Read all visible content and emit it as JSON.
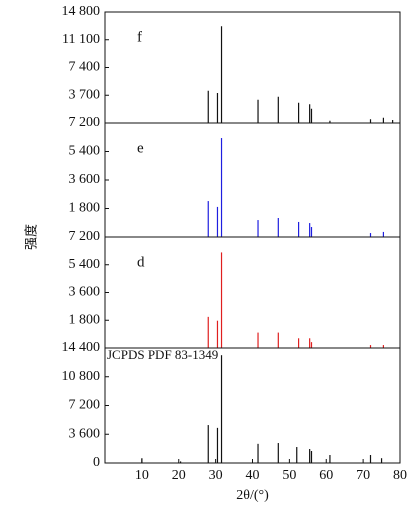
{
  "chart_data": [
    {
      "type": "stem",
      "title": "f",
      "color": "#111111",
      "x": [
        28.0,
        30.5,
        31.6,
        41.5,
        47.0,
        52.5,
        55.5,
        56.0,
        61.0,
        72.0,
        75.5,
        78.0
      ],
      "values": [
        4300,
        4000,
        12900,
        3100,
        3500,
        2700,
        2500,
        1900,
        300,
        500,
        700,
        400
      ],
      "xlim": [
        0,
        80
      ],
      "ylim": [
        0,
        14800
      ],
      "yticks": [
        {
          "value": 14800,
          "label": "14 800"
        },
        {
          "value": 11100,
          "label": "11 100"
        },
        {
          "value": 7400,
          "label": "7 400"
        },
        {
          "value": 3700,
          "label": "3 700"
        }
      ]
    },
    {
      "type": "stem",
      "title": "e",
      "color": "#1f1fe0",
      "x": [
        28.0,
        30.5,
        31.6,
        41.5,
        47.0,
        52.5,
        55.5,
        56.0,
        72.0,
        75.5
      ],
      "values": [
        2270,
        1900,
        6250,
        1070,
        1200,
        950,
        880,
        630,
        250,
        320
      ],
      "xlim": [
        0,
        80
      ],
      "ylim": [
        0,
        7200
      ],
      "yticks": [
        {
          "value": 7200,
          "label": "7 200"
        },
        {
          "value": 5400,
          "label": "5 400"
        },
        {
          "value": 3600,
          "label": "3 600"
        },
        {
          "value": 1800,
          "label": "1 800"
        }
      ]
    },
    {
      "type": "stem",
      "title": "d",
      "color": "#e01f1f",
      "x": [
        28.0,
        30.5,
        31.6,
        41.5,
        47.0,
        52.5,
        55.5,
        56.0,
        72.0,
        75.5
      ],
      "values": [
        2020,
        1770,
        6200,
        1000,
        1000,
        630,
        630,
        380,
        190,
        190
      ],
      "xlim": [
        0,
        80
      ],
      "ylim": [
        0,
        7200
      ],
      "yticks": [
        {
          "value": 7200,
          "label": "7 200"
        },
        {
          "value": 5400,
          "label": "5 400"
        },
        {
          "value": 3600,
          "label": "3 600"
        },
        {
          "value": 1800,
          "label": "1 800"
        }
      ]
    },
    {
      "type": "stem",
      "title": "JCPDS PDF 83-1349",
      "color": "#111111",
      "x": [
        10.0,
        20.5,
        28.0,
        30.5,
        31.6,
        41.5,
        47.0,
        52.0,
        55.5,
        56.0,
        61.0,
        72.0,
        75.0
      ],
      "values": [
        600,
        200,
        4750,
        4400,
        13500,
        2400,
        2500,
        2000,
        1750,
        1500,
        1000,
        1000,
        600
      ],
      "xlim": [
        0,
        80
      ],
      "ylim": [
        0,
        14400
      ],
      "yticks": [
        {
          "value": 14400,
          "label": "14 400"
        },
        {
          "value": 10800,
          "label": "10 800"
        },
        {
          "value": 7200,
          "label": "7 200"
        },
        {
          "value": 3600,
          "label": "3 600"
        },
        0
      ],
      "xticks": [
        10,
        20,
        30,
        40,
        50,
        60,
        70,
        80
      ],
      "xlabel": "2θ/(°)",
      "ylabel": "强度"
    }
  ]
}
